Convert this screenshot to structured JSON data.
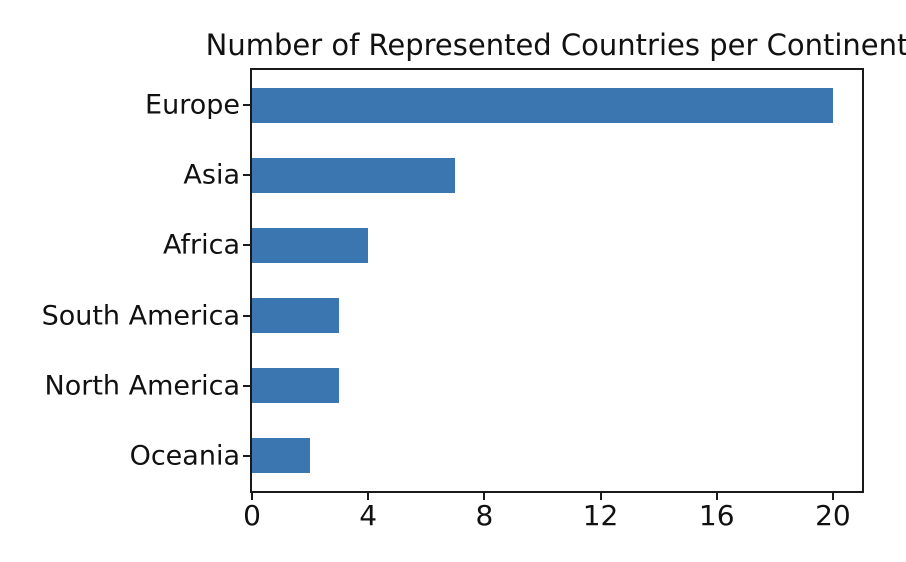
{
  "chart_data": {
    "type": "bar",
    "orientation": "horizontal",
    "title": "Number of Represented Countries per Continent",
    "categories": [
      "Europe",
      "Asia",
      "Africa",
      "South America",
      "North America",
      "Oceania"
    ],
    "values": [
      20,
      7,
      4,
      3,
      3,
      2
    ],
    "xlabel": "",
    "ylabel": "",
    "xlim": [
      0,
      21
    ],
    "xticks": [
      0,
      4,
      8,
      12,
      16,
      20
    ],
    "grid": false,
    "legend": false,
    "colors": {
      "bar": "#3b76b0",
      "axis": "#1a1a1a",
      "text": "#111111",
      "background": "#ffffff"
    }
  }
}
